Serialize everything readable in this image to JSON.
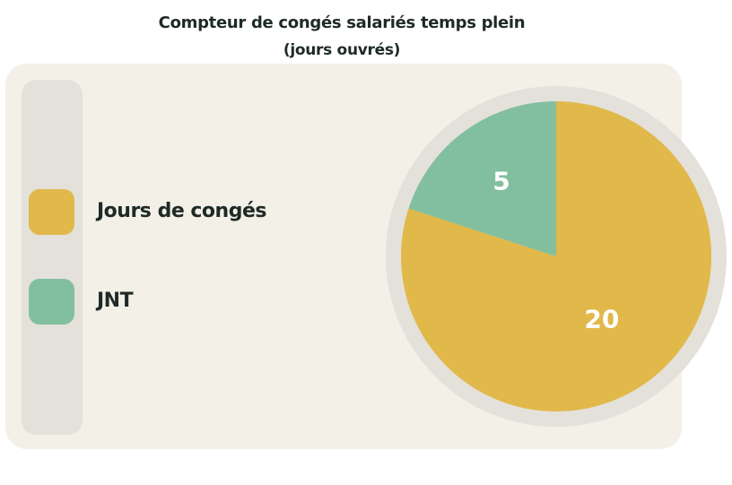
{
  "title": {
    "line1": "Compteur de congés salariés temps plein",
    "line2": "(jours ouvrés)"
  },
  "legend": [
    {
      "label": "Jours de congés",
      "color": "#e1b84a"
    },
    {
      "label": "JNT",
      "color": "#82bf9f"
    }
  ],
  "chart_data": {
    "type": "pie",
    "title": "Compteur de congés salariés temps plein (jours ouvrés)",
    "categories": [
      "Jours de congés",
      "JNT"
    ],
    "values": [
      20,
      5
    ],
    "colors": [
      "#e1b84a",
      "#82bf9f"
    ],
    "data_labels": [
      "20",
      "5"
    ],
    "legend_position": "left"
  },
  "colors": {
    "panel": "#f3f0e8",
    "legend_strip": "#e4e1da",
    "pie_ring": "#e4e1da",
    "text": "#1e2a26",
    "data_label": "#ffffff"
  }
}
